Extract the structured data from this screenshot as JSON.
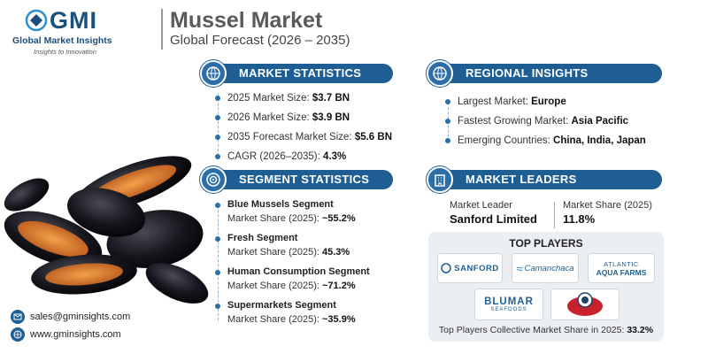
{
  "brand": {
    "logo_mark": "GMI",
    "name": "Global Market Insights",
    "tagline": "Insights to Innovation"
  },
  "header": {
    "title": "Mussel Market",
    "subtitle": "Global Forecast (2026 – 2035)"
  },
  "market_statistics": {
    "heading": "MARKET STATISTICS",
    "icon": "globe-chart-icon",
    "rows": [
      {
        "label": "2025 Market Size: ",
        "value": "$3.7 BN"
      },
      {
        "label": "2026 Market Size: ",
        "value": "$3.9 BN"
      },
      {
        "label": "2035 Forecast Market Size: ",
        "value": "$5.6 BN"
      },
      {
        "label": "CAGR (2026–2035): ",
        "value": "4.3%"
      }
    ]
  },
  "regional_insights": {
    "heading": "REGIONAL INSIGHTS",
    "icon": "globe-icon",
    "rows": [
      {
        "label": "Largest Market: ",
        "value": "Europe"
      },
      {
        "label": "Fastest Growing Market: ",
        "value": "Asia Pacific"
      },
      {
        "label": "Emerging Countries: ",
        "value": "China, India, Japan"
      }
    ]
  },
  "segment_statistics": {
    "heading": "SEGMENT STATISTICS",
    "icon": "target-icon",
    "items": [
      {
        "title": "Blue Mussels Segment",
        "share_label": "Market Share (2025): ",
        "share": "~55.2%"
      },
      {
        "title": "Fresh Segment",
        "share_label": "Market Share (2025): ",
        "share": "45.3%"
      },
      {
        "title": "Human Consumption Segment",
        "share_label": "Market Share (2025): ",
        "share": "~71.2%"
      },
      {
        "title": "Supermarkets Segment",
        "share_label": "Market Share (2025): ",
        "share": "~35.9%"
      }
    ]
  },
  "market_leaders": {
    "heading": "MARKET LEADERS",
    "icon": "building-icon",
    "leader_label": "Market Leader",
    "leader_name": "Sanford Limited",
    "share_label": "Market Share (2025)",
    "share_value": "11.8%"
  },
  "top_players": {
    "title": "TOP PLAYERS",
    "logos": [
      "SANFORD",
      "Camanchaca",
      "ATLANTIC",
      "AQUA FARMS",
      "BLUMAR",
      "SEAFOODS"
    ],
    "footer_label": "Top Players Collective Market Share in 2025: ",
    "footer_value": "33.2%"
  },
  "contact": {
    "email": "sales@gminsights.com",
    "website": "www.gminsights.com"
  },
  "colors": {
    "accent": "#1f5e93",
    "title_gray": "#5a5a5a"
  }
}
